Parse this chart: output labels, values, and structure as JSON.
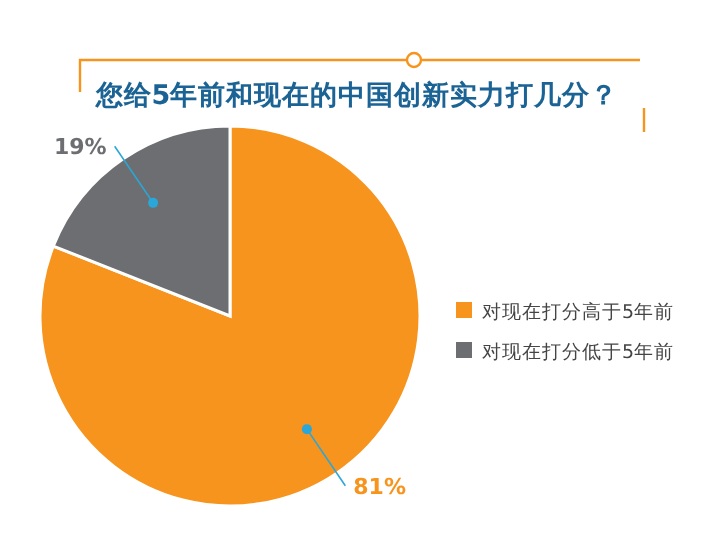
{
  "chart_data": {
    "type": "pie",
    "title": "您给5年前和现在的中国创新实力打几分？",
    "categories": [
      "对现在打分高于5年前",
      "对现在打分低于5年前"
    ],
    "values": [
      81,
      19
    ],
    "colors": [
      "#f7941d",
      "#6d6e71"
    ],
    "value_labels": [
      "81%",
      "19%"
    ],
    "legend": "right"
  }
}
